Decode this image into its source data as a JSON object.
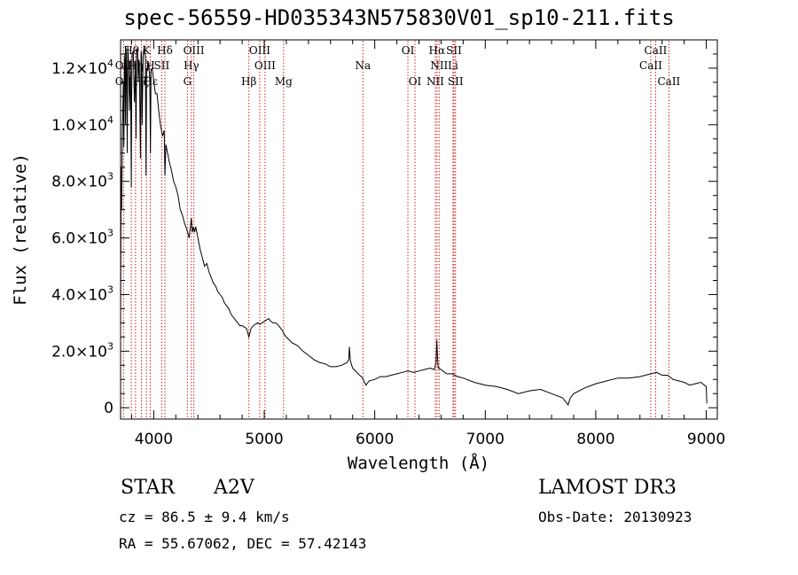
{
  "chart_data": {
    "type": "line",
    "title": "spec-56559-HD035343N575830V01_sp10-211.fits",
    "xlabel": "Wavelength (Å)",
    "ylabel": "Flux (relative)",
    "xlim": [
      3700,
      9100
    ],
    "ylim": [
      -400,
      13000
    ],
    "xticks": [
      {
        "value": 4000,
        "label": "4000"
      },
      {
        "value": 5000,
        "label": "5000"
      },
      {
        "value": 6000,
        "label": "6000"
      },
      {
        "value": 7000,
        "label": "7000"
      },
      {
        "value": 8000,
        "label": "8000"
      },
      {
        "value": 9000,
        "label": "9000"
      }
    ],
    "yticks": [
      {
        "value": 0,
        "mant": "0",
        "exp": ""
      },
      {
        "value": 2000,
        "mant": "2.0×10",
        "exp": "3"
      },
      {
        "value": 4000,
        "mant": "4.0×10",
        "exp": "3"
      },
      {
        "value": 6000,
        "mant": "6.0×10",
        "exp": "3"
      },
      {
        "value": 8000,
        "mant": "8.0×10",
        "exp": "3"
      },
      {
        "value": 10000,
        "mant": "1.0×10",
        "exp": "4"
      },
      {
        "value": 12000,
        "mant": "1.2×10",
        "exp": "4"
      }
    ],
    "series": [
      {
        "name": "spectrum",
        "x": [
          3700,
          3705,
          3710,
          3715,
          3720,
          3725,
          3730,
          3735,
          3740,
          3745,
          3750,
          3755,
          3760,
          3765,
          3770,
          3775,
          3780,
          3790,
          3797,
          3800,
          3805,
          3815,
          3825,
          3835,
          3840,
          3845,
          3855,
          3860,
          3865,
          3870,
          3880,
          3885,
          3890,
          3895,
          3905,
          3915,
          3925,
          3930,
          3935,
          3945,
          3955,
          3965,
          3970,
          3975,
          3985,
          3995,
          4005,
          4015,
          4030,
          4045,
          4060,
          4080,
          4095,
          4101,
          4110,
          4125,
          4140,
          4160,
          4180,
          4200,
          4220,
          4240,
          4260,
          4280,
          4300,
          4320,
          4340,
          4350,
          4360,
          4370,
          4380,
          4400,
          4420,
          4440,
          4460,
          4480,
          4500,
          4520,
          4540,
          4560,
          4580,
          4600,
          4620,
          4640,
          4660,
          4680,
          4700,
          4720,
          4740,
          4760,
          4780,
          4800,
          4820,
          4840,
          4861,
          4880,
          4900,
          4920,
          4940,
          4960,
          4980,
          5000,
          5020,
          5040,
          5060,
          5080,
          5100,
          5120,
          5140,
          5160,
          5180,
          5200,
          5250,
          5300,
          5350,
          5400,
          5450,
          5500,
          5550,
          5600,
          5650,
          5700,
          5750,
          5765,
          5770,
          5775,
          5780,
          5800,
          5850,
          5890,
          5920,
          5950,
          6000,
          6050,
          6100,
          6150,
          6200,
          6250,
          6300,
          6350,
          6400,
          6450,
          6500,
          6540,
          6555,
          6562,
          6568,
          6575,
          6600,
          6650,
          6700,
          6750,
          6800,
          6900,
          7000,
          7100,
          7200,
          7300,
          7400,
          7500,
          7600,
          7700,
          7750,
          7765,
          7780,
          7800,
          7900,
          8000,
          8100,
          8200,
          8300,
          8400,
          8500,
          8550,
          8600,
          8650,
          8700,
          8750,
          8800,
          8850,
          8900,
          8950,
          9000,
          9005
        ],
        "y": [
          3000,
          8500,
          7000,
          9500,
          10500,
          11500,
          9200,
          12200,
          12500,
          10000,
          12700,
          11800,
          9000,
          12800,
          12400,
          11900,
          10500,
          12300,
          7800,
          11000,
          12500,
          12600,
          10800,
          12200,
          9500,
          12700,
          12500,
          11500,
          12300,
          12200,
          8800,
          12600,
          12400,
          10000,
          12500,
          12800,
          12300,
          8200,
          12000,
          11900,
          12200,
          11500,
          9000,
          11900,
          12000,
          11700,
          11400,
          11100,
          11100,
          10500,
          10000,
          9600,
          9800,
          8200,
          9300,
          9000,
          8700,
          8400,
          8000,
          7800,
          7500,
          7000,
          6800,
          6500,
          6300,
          6000,
          6700,
          6200,
          6400,
          6200,
          6400,
          6000,
          5600,
          5300,
          5000,
          5100,
          4800,
          4600,
          4400,
          4300,
          4100,
          4000,
          3900,
          3700,
          3600,
          3500,
          3300,
          3200,
          3100,
          3000,
          2900,
          2900,
          2850,
          2800,
          2500,
          2800,
          2900,
          2950,
          3000,
          2950,
          3000,
          3050,
          3100,
          3150,
          3050,
          3000,
          3000,
          2950,
          2850,
          2750,
          2600,
          2500,
          2300,
          2200,
          2000,
          1850,
          1700,
          1600,
          1550,
          1450,
          1450,
          1500,
          1600,
          1700,
          2150,
          1900,
          1650,
          1400,
          1200,
          1050,
          800,
          950,
          1000,
          1100,
          1100,
          1150,
          1200,
          1250,
          1300,
          1250,
          1300,
          1350,
          1400,
          1350,
          1600,
          2400,
          1800,
          1400,
          1350,
          1200,
          1200,
          1100,
          1050,
          900,
          800,
          750,
          650,
          500,
          600,
          650,
          500,
          350,
          100,
          300,
          400,
          500,
          700,
          850,
          950,
          1050,
          1050,
          1100,
          1200,
          1250,
          1150,
          1150,
          1000,
          950,
          900,
          800,
          850,
          900,
          750,
          150
        ]
      }
    ],
    "lines_top": [
      {
        "name": "Hθ",
        "x": 3797,
        "row": 0
      },
      {
        "name": "K",
        "x": 3934,
        "row": 0
      },
      {
        "name": "Hδ",
        "x": 4101,
        "row": 0
      },
      {
        "name": "OIII",
        "x": 4363,
        "row": 0
      },
      {
        "name": "OIII",
        "x": 4959,
        "row": 0
      },
      {
        "name": "OI",
        "x": 6300,
        "row": 0
      },
      {
        "name": "Hα",
        "x": 6563,
        "row": 0
      },
      {
        "name": "SII",
        "x": 6717,
        "row": 0
      },
      {
        "name": "CaII",
        "x": 8542,
        "row": 0
      },
      {
        "name": "OII",
        "x": 3727,
        "row": 1
      },
      {
        "name": "Hη",
        "x": 3835,
        "row": 1
      },
      {
        "name": "H",
        "x": 3969,
        "row": 1
      },
      {
        "name": "SII",
        "x": 4072,
        "row": 1
      },
      {
        "name": "Hγ",
        "x": 4340,
        "row": 1
      },
      {
        "name": "OIII",
        "x": 5007,
        "row": 1
      },
      {
        "name": "Na",
        "x": 5893,
        "row": 1
      },
      {
        "name": "NII",
        "x": 6583,
        "row": 1
      },
      {
        "name": "Li",
        "x": 6708,
        "row": 1
      },
      {
        "name": "CaII",
        "x": 8498,
        "row": 1
      },
      {
        "name": "OII",
        "x": 3727,
        "row": 2
      },
      {
        "name": "Hζ",
        "x": 3889,
        "row": 2
      },
      {
        "name": "Hε",
        "x": 3970,
        "row": 2
      },
      {
        "name": "G",
        "x": 4305,
        "row": 2
      },
      {
        "name": "Hβ",
        "x": 4861,
        "row": 2
      },
      {
        "name": "Mg",
        "x": 5175,
        "row": 2
      },
      {
        "name": "OI",
        "x": 6364,
        "row": 2
      },
      {
        "name": "NII",
        "x": 6548,
        "row": 2
      },
      {
        "name": "SII",
        "x": 6731,
        "row": 2
      },
      {
        "name": "CaII",
        "x": 8662,
        "row": 2
      }
    ]
  },
  "info": {
    "object_class": "STAR",
    "subclass": "A2V",
    "survey": "LAMOST DR3",
    "cz": "cz = 86.5 ± 9.4 km/s",
    "obs_date": "Obs-Date: 20130923",
    "coords": "RA =  55.67062, DEC =  57.42143"
  },
  "colors": {
    "spectrum": "#000000",
    "line_markers": "#cc2020",
    "background": "#ffffff"
  }
}
